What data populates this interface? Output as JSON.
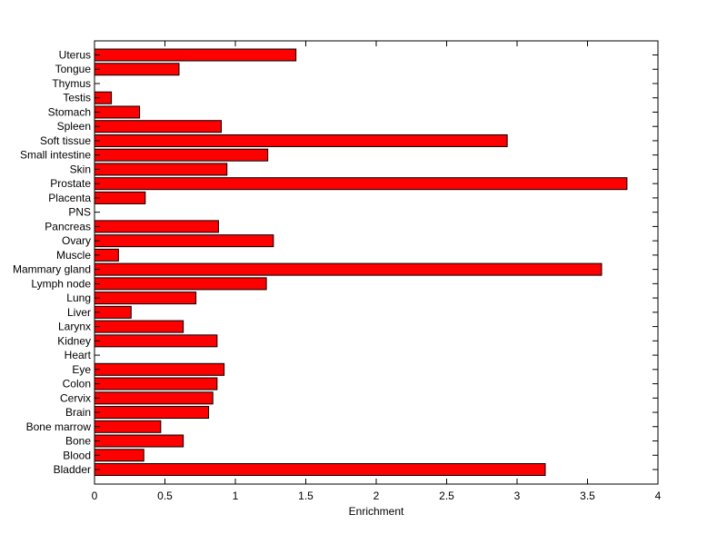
{
  "chart_data": {
    "type": "bar",
    "orientation": "horizontal",
    "title": "",
    "xlabel": "Enrichment",
    "ylabel": "",
    "xlim": [
      0,
      4
    ],
    "xticks": [
      0,
      0.5,
      1,
      1.5,
      2,
      2.5,
      3,
      3.5,
      4
    ],
    "xtick_labels": [
      "0",
      "0.5",
      "1",
      "1.5",
      "2",
      "2.5",
      "3",
      "3.5",
      "4"
    ],
    "grid": false,
    "categories": [
      "Uterus",
      "Tongue",
      "Thymus",
      "Testis",
      "Stomach",
      "Spleen",
      "Soft tissue",
      "Small intestine",
      "Skin",
      "Prostate",
      "Placenta",
      "PNS",
      "Pancreas",
      "Ovary",
      "Muscle",
      "Mammary gland",
      "Lymph node",
      "Lung",
      "Liver",
      "Larynx",
      "Kidney",
      "Heart",
      "Eye",
      "Colon",
      "Cervix",
      "Brain",
      "Bone marrow",
      "Bone",
      "Blood",
      "Bladder"
    ],
    "values": [
      1.43,
      0.6,
      0,
      0.12,
      0.32,
      0.9,
      2.93,
      1.23,
      0.94,
      3.78,
      0.36,
      0,
      0.88,
      1.27,
      0.17,
      3.6,
      1.22,
      0.72,
      0.26,
      0.63,
      0.87,
      0,
      0.92,
      0.87,
      0.84,
      0.81,
      0.47,
      0.63,
      0.35,
      3.2
    ],
    "bar_color": "#ff0000",
    "bar_edge_color": "#000000"
  }
}
